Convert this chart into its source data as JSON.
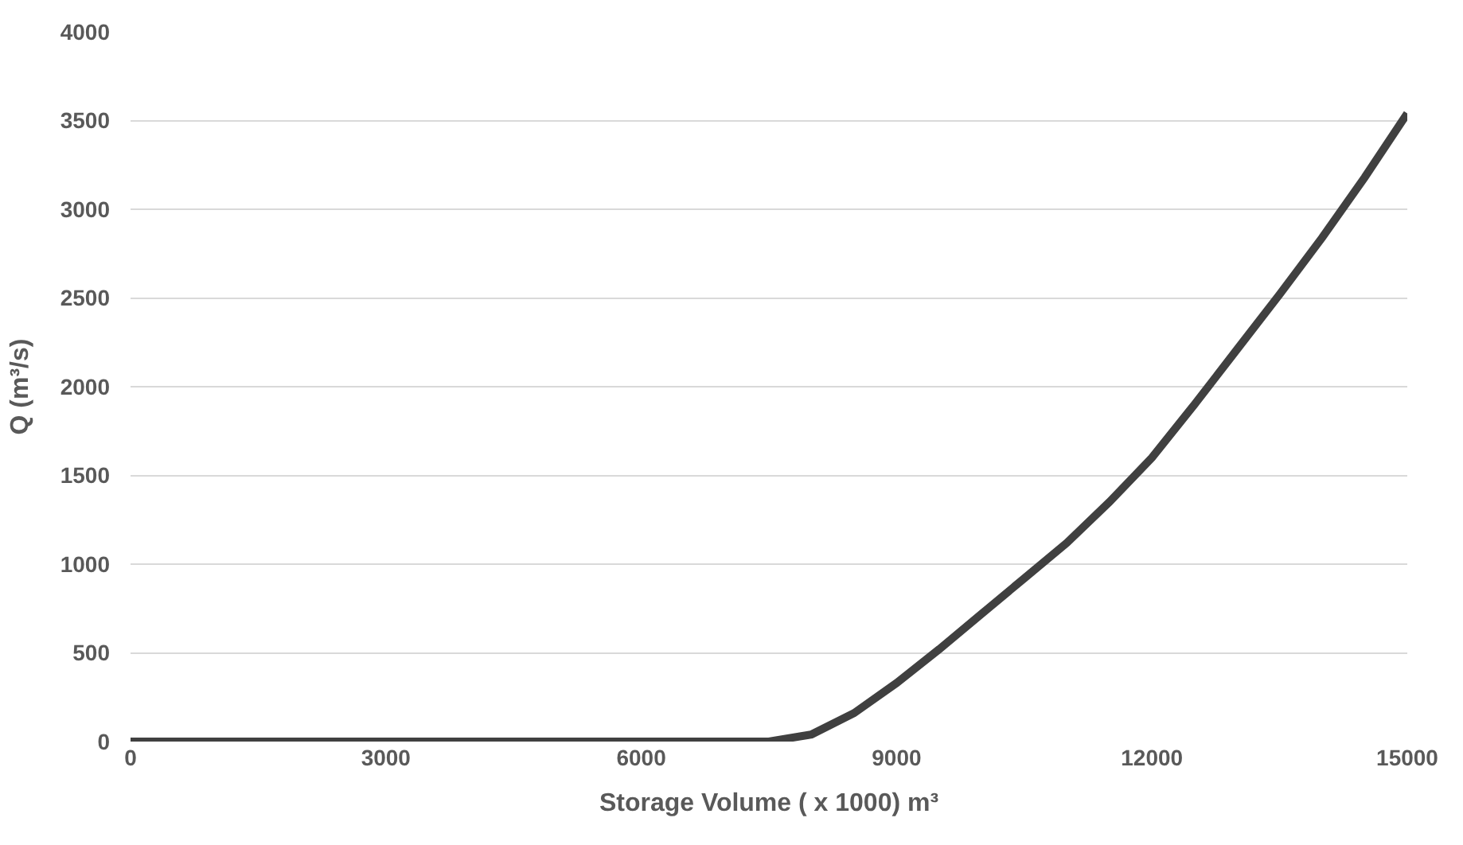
{
  "chart_data": {
    "type": "line",
    "xlabel": "Storage Volume ( x 1000) m³",
    "ylabel": "Q (m³/s)",
    "x": [
      0,
      3000,
      6000,
      7000,
      7500,
      8000,
      8500,
      9000,
      9500,
      10000,
      10500,
      11000,
      11500,
      12000,
      12500,
      13000,
      13500,
      14000,
      14500,
      15000
    ],
    "series": [
      {
        "color": "#404040",
        "values": [
          0,
          0,
          0,
          0,
          0,
          40,
          160,
          330,
          520,
          720,
          920,
          1120,
          1350,
          1600,
          1900,
          2210,
          2520,
          2840,
          3180,
          3540
        ]
      }
    ],
    "xlim": [
      0,
      15000
    ],
    "xticks": [
      0,
      3000,
      6000,
      9000,
      12000,
      15000
    ],
    "ylim": [
      0,
      4000
    ],
    "yticks": [
      0,
      500,
      1000,
      1500,
      2000,
      2500,
      3000,
      3500,
      4000
    ],
    "grid": "y",
    "marker": "none",
    "line_style": "solid",
    "legend": false
  }
}
